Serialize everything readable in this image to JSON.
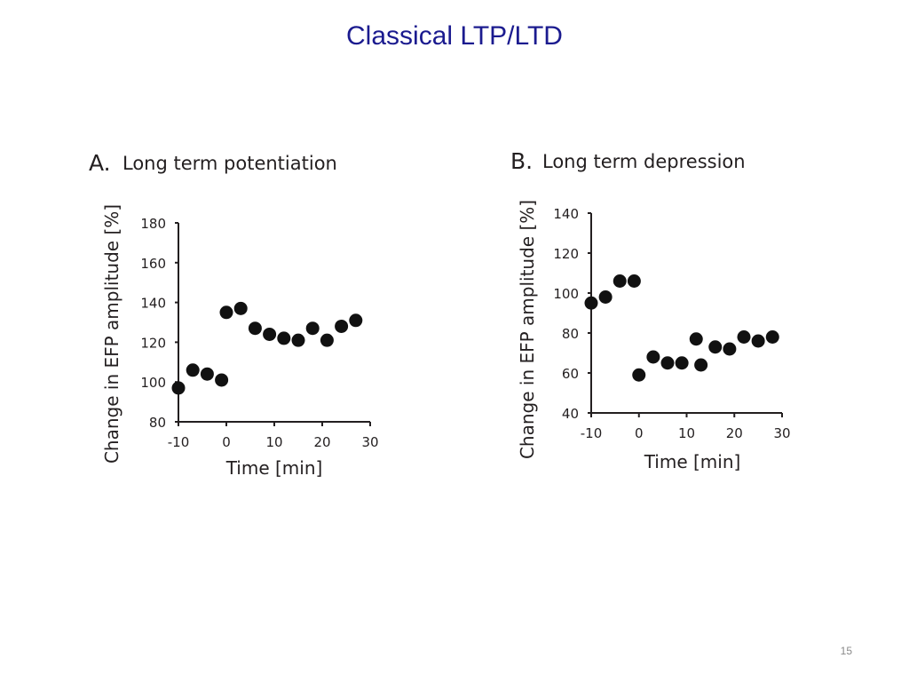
{
  "slide": {
    "title": "Classical LTP/LTD",
    "page_number": "15",
    "title_color": "#1b1b8f"
  },
  "chart_data": [
    {
      "type": "scatter",
      "panel": "A.",
      "title": "Long term potentiation",
      "xlabel": "Time [min]",
      "ylabel": "Change in EFP amplitude [%]",
      "xlim": [
        -10,
        30
      ],
      "ylim": [
        80,
        180
      ],
      "xticks": [
        -10,
        0,
        10,
        20,
        30
      ],
      "yticks": [
        80,
        100,
        120,
        140,
        160,
        180
      ],
      "grid": false,
      "x": [
        -10,
        -7,
        -4,
        -1,
        0,
        3,
        6,
        9,
        12,
        15,
        18,
        21,
        24,
        27
      ],
      "y": [
        97,
        106,
        104,
        101,
        135,
        137,
        127,
        124,
        122,
        121,
        127,
        121,
        128,
        131
      ]
    },
    {
      "type": "scatter",
      "panel": "B.",
      "title": "Long term depression",
      "xlabel": "Time [min]",
      "ylabel": "Change in EFP amplitude [%]",
      "xlim": [
        -10,
        30
      ],
      "ylim": [
        40,
        140
      ],
      "xticks": [
        -10,
        0,
        10,
        20,
        30
      ],
      "yticks": [
        40,
        60,
        80,
        100,
        120,
        140
      ],
      "grid": false,
      "x": [
        -10,
        -7,
        -4,
        -1,
        0,
        3,
        6,
        9,
        12,
        13,
        16,
        19,
        22,
        25,
        28
      ],
      "y": [
        95,
        98,
        106,
        106,
        59,
        68,
        65,
        65,
        77,
        64,
        73,
        72,
        78,
        76,
        78
      ]
    }
  ]
}
